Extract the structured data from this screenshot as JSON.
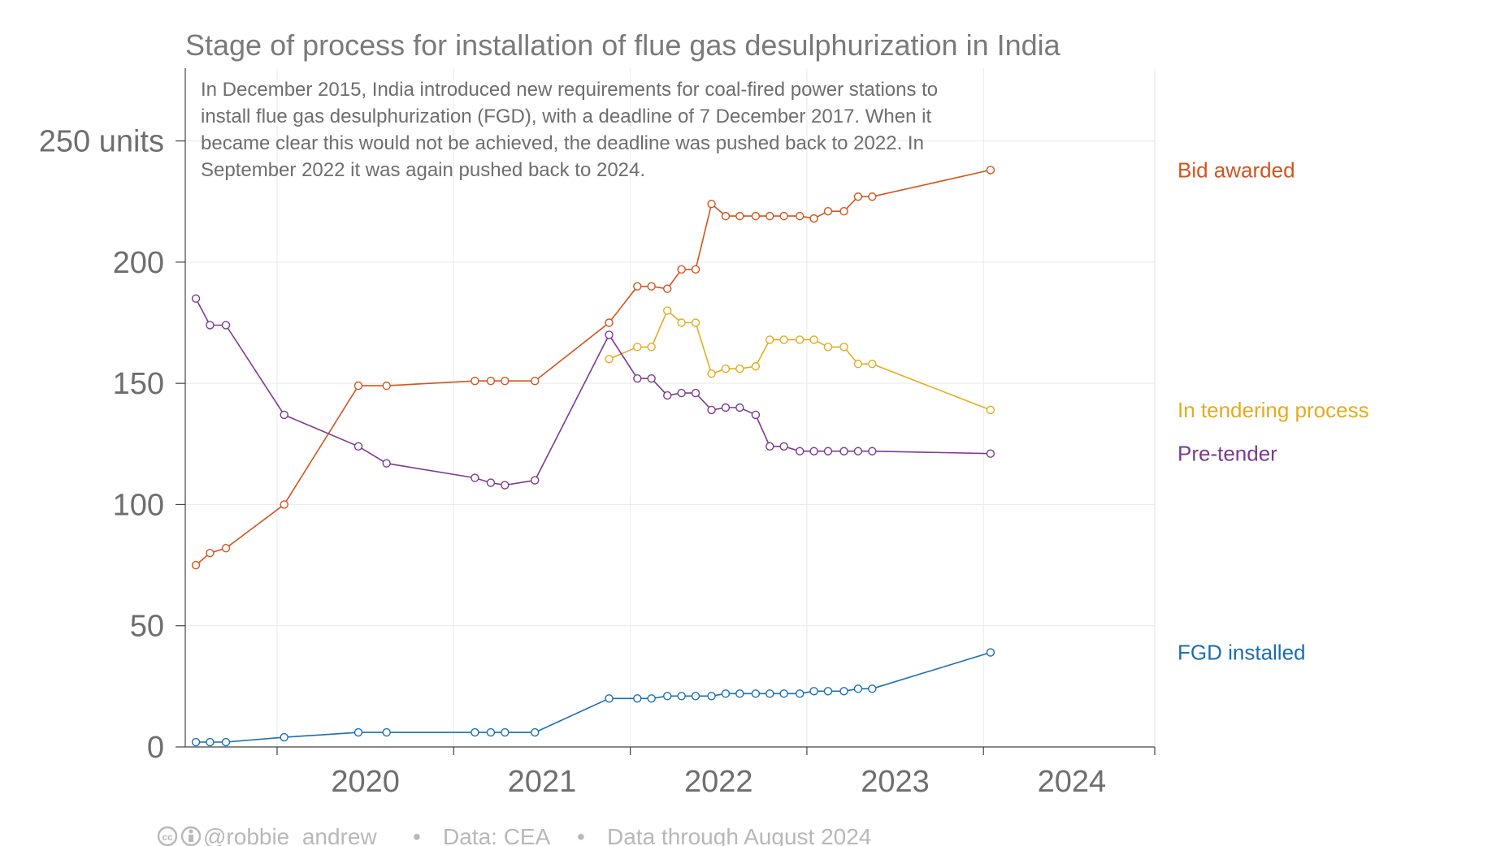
{
  "chart_data": {
    "type": "line",
    "title": "Stage of process for installation of flue gas desulphurization in India",
    "annotation": [
      "In December 2015, India introduced new requirements for coal-fired power stations to",
      "install flue gas desulphurization (FGD), with a deadline of 7 December 2017. When it",
      "became clear this would not be achieved, the deadline was pushed back to 2022. In",
      "September 2022 it was again pushed back to 2024."
    ],
    "ylim": [
      0,
      280
    ],
    "xlim": [
      2019.48,
      2024.97
    ],
    "yticks": [
      {
        "value": 0,
        "label": "0"
      },
      {
        "value": 50,
        "label": "50"
      },
      {
        "value": 100,
        "label": "100"
      },
      {
        "value": 150,
        "label": "150"
      },
      {
        "value": 200,
        "label": "200"
      },
      {
        "value": 250,
        "label": "250 units"
      }
    ],
    "xticks": [
      {
        "value": 2020,
        "label": "2020"
      },
      {
        "value": 2021,
        "label": "2021"
      },
      {
        "value": 2022,
        "label": "2022"
      },
      {
        "value": 2023,
        "label": "2023"
      },
      {
        "value": 2024,
        "label": "2024"
      }
    ],
    "legend_placement": "right, labels at line ends",
    "grid": true,
    "series": [
      {
        "name": "Bid awarded",
        "color": "#d4541c",
        "points": [
          [
            2019.54,
            75
          ],
          [
            2019.62,
            80
          ],
          [
            2019.71,
            82
          ],
          [
            2020.04,
            100
          ],
          [
            2020.46,
            149
          ],
          [
            2020.62,
            149
          ],
          [
            2021.12,
            151
          ],
          [
            2021.21,
            151
          ],
          [
            2021.29,
            151
          ],
          [
            2021.46,
            151
          ],
          [
            2021.88,
            175
          ],
          [
            2022.04,
            190
          ],
          [
            2022.12,
            190
          ],
          [
            2022.21,
            189
          ],
          [
            2022.29,
            197
          ],
          [
            2022.37,
            197
          ],
          [
            2022.46,
            224
          ],
          [
            2022.54,
            219
          ],
          [
            2022.62,
            219
          ],
          [
            2022.71,
            219
          ],
          [
            2022.79,
            219
          ],
          [
            2022.87,
            219
          ],
          [
            2022.96,
            219
          ],
          [
            2023.04,
            218
          ],
          [
            2023.12,
            221
          ],
          [
            2023.21,
            221
          ],
          [
            2023.29,
            227
          ],
          [
            2023.37,
            227
          ],
          [
            2024.04,
            238
          ]
        ]
      },
      {
        "name": "In tendering process",
        "color": "#e6ab1c",
        "points": [
          [
            2021.88,
            160
          ],
          [
            2022.04,
            165
          ],
          [
            2022.12,
            165
          ],
          [
            2022.21,
            180
          ],
          [
            2022.29,
            175
          ],
          [
            2022.37,
            175
          ],
          [
            2022.46,
            154
          ],
          [
            2022.54,
            156
          ],
          [
            2022.62,
            156
          ],
          [
            2022.71,
            157
          ],
          [
            2022.79,
            168
          ],
          [
            2022.87,
            168
          ],
          [
            2022.96,
            168
          ],
          [
            2023.04,
            168
          ],
          [
            2023.12,
            165
          ],
          [
            2023.21,
            165
          ],
          [
            2023.29,
            158
          ],
          [
            2023.37,
            158
          ],
          [
            2024.04,
            139
          ]
        ]
      },
      {
        "name": "Pre-tender",
        "color": "#7d3a91",
        "points": [
          [
            2019.54,
            185
          ],
          [
            2019.62,
            174
          ],
          [
            2019.71,
            174
          ],
          [
            2020.04,
            137
          ],
          [
            2020.46,
            124
          ],
          [
            2020.62,
            117
          ],
          [
            2021.12,
            111
          ],
          [
            2021.21,
            109
          ],
          [
            2021.29,
            108
          ],
          [
            2021.46,
            110
          ],
          [
            2021.88,
            170
          ],
          [
            2022.04,
            152
          ],
          [
            2022.12,
            152
          ],
          [
            2022.21,
            145
          ],
          [
            2022.29,
            146
          ],
          [
            2022.37,
            146
          ],
          [
            2022.46,
            139
          ],
          [
            2022.54,
            140
          ],
          [
            2022.62,
            140
          ],
          [
            2022.71,
            137
          ],
          [
            2022.79,
            124
          ],
          [
            2022.87,
            124
          ],
          [
            2022.96,
            122
          ],
          [
            2023.04,
            122
          ],
          [
            2023.12,
            122
          ],
          [
            2023.21,
            122
          ],
          [
            2023.29,
            122
          ],
          [
            2023.37,
            122
          ],
          [
            2024.04,
            121
          ]
        ]
      },
      {
        "name": "FGD installed",
        "color": "#1a6fb3",
        "points": [
          [
            2019.54,
            2
          ],
          [
            2019.62,
            2
          ],
          [
            2019.71,
            2
          ],
          [
            2020.04,
            4
          ],
          [
            2020.46,
            6
          ],
          [
            2020.62,
            6
          ],
          [
            2021.12,
            6
          ],
          [
            2021.21,
            6
          ],
          [
            2021.29,
            6
          ],
          [
            2021.46,
            6
          ],
          [
            2021.88,
            20
          ],
          [
            2022.04,
            20
          ],
          [
            2022.12,
            20
          ],
          [
            2022.21,
            21
          ],
          [
            2022.29,
            21
          ],
          [
            2022.37,
            21
          ],
          [
            2022.46,
            21
          ],
          [
            2022.54,
            22
          ],
          [
            2022.62,
            22
          ],
          [
            2022.71,
            22
          ],
          [
            2022.79,
            22
          ],
          [
            2022.87,
            22
          ],
          [
            2022.96,
            22
          ],
          [
            2023.04,
            23
          ],
          [
            2023.12,
            23
          ],
          [
            2023.21,
            23
          ],
          [
            2023.29,
            24
          ],
          [
            2023.37,
            24
          ],
          [
            2024.04,
            39
          ]
        ]
      }
    ]
  },
  "footer": {
    "author": "@robbie_andrew",
    "source": "Data: CEA",
    "coverage": "Data through August 2024",
    "separator": "•",
    "license_icons": "creative-commons-by-icon"
  }
}
